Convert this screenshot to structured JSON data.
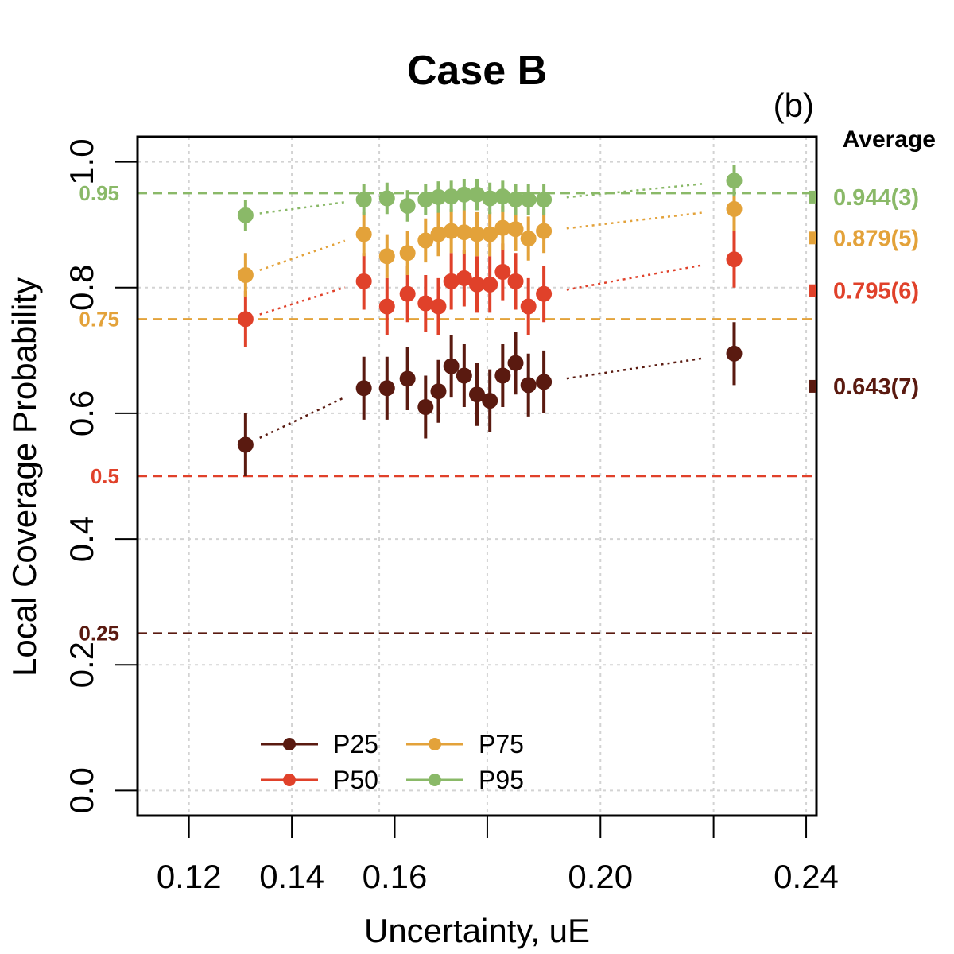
{
  "chart_data": {
    "type": "scatter",
    "title": "Case B",
    "panel_label": "(b)",
    "xlabel": "Uncertainty, uE",
    "ylabel": "Local Coverage Probability",
    "xlim": [
      0.11,
      0.242
    ],
    "ylim": [
      -0.04,
      1.04
    ],
    "x_ticks": [
      0.12,
      0.14,
      0.16,
      0.2,
      0.24
    ],
    "x_tick_labels": [
      "0.12",
      "0.14",
      "0.16",
      "0.20",
      "0.24"
    ],
    "x_minor_ticks": [
      0.178,
      0.222
    ],
    "y_ticks": [
      0.0,
      0.2,
      0.4,
      0.6,
      0.8,
      1.0
    ],
    "y_tick_labels": [
      "0.0",
      "0.2",
      "0.4",
      "0.6",
      "0.8",
      "1.0"
    ],
    "grid_x": [
      0.12,
      0.14,
      0.157,
      0.178,
      0.2,
      0.222,
      0.24
    ],
    "grid": true,
    "x": [
      0.131,
      0.154,
      0.1585,
      0.1625,
      0.166,
      0.1685,
      0.171,
      0.1735,
      0.176,
      0.1785,
      0.181,
      0.1835,
      0.186,
      0.189,
      0.1935,
      0.1995,
      0.226
    ],
    "series": [
      {
        "name": "P25",
        "color": "#5a1a10",
        "values": [
          0.55,
          0.64,
          0.64,
          0.655,
          0.61,
          0.635,
          0.675,
          0.66,
          0.63,
          0.62,
          0.66,
          0.68,
          0.645,
          0.65,
          0.695
        ],
        "x_index": [
          0,
          1,
          2,
          3,
          4,
          5,
          6,
          7,
          8,
          9,
          10,
          11,
          12,
          13,
          16
        ],
        "err": 0.05,
        "avg_label": "0.643(7)",
        "avg_value": 0.643
      },
      {
        "name": "P50",
        "color": "#e0412a",
        "values": [
          0.75,
          0.81,
          0.77,
          0.79,
          0.775,
          0.77,
          0.81,
          0.815,
          0.805,
          0.805,
          0.825,
          0.81,
          0.77,
          0.79,
          0.845
        ],
        "x_index": [
          0,
          1,
          2,
          3,
          4,
          5,
          6,
          7,
          8,
          9,
          10,
          11,
          12,
          13,
          16
        ],
        "err": 0.045,
        "avg_label": "0.795(6)",
        "avg_value": 0.795
      },
      {
        "name": "P75",
        "color": "#e3a23a",
        "values": [
          0.82,
          0.885,
          0.85,
          0.855,
          0.875,
          0.885,
          0.89,
          0.888,
          0.885,
          0.885,
          0.895,
          0.893,
          0.878,
          0.89,
          0.925
        ],
        "x_index": [
          0,
          1,
          2,
          3,
          4,
          5,
          6,
          7,
          8,
          9,
          10,
          11,
          12,
          13,
          16
        ],
        "err": 0.035,
        "avg_label": "0.879(5)",
        "avg_value": 0.879
      },
      {
        "name": "P95",
        "color": "#8ab968",
        "values": [
          0.915,
          0.94,
          0.942,
          0.93,
          0.94,
          0.944,
          0.945,
          0.948,
          0.948,
          0.942,
          0.945,
          0.94,
          0.94,
          0.94,
          0.97
        ],
        "x_index": [
          0,
          1,
          2,
          3,
          4,
          5,
          6,
          7,
          8,
          9,
          10,
          11,
          12,
          13,
          16
        ],
        "err": 0.025,
        "avg_label": "0.944(3)",
        "avg_value": 0.944
      }
    ],
    "reference_lines": [
      {
        "value": 0.25,
        "label": "0.25",
        "color": "#5a1a10"
      },
      {
        "value": 0.5,
        "label": "0.5",
        "color": "#e0412a"
      },
      {
        "value": 0.75,
        "label": "0.75",
        "color": "#e3a23a"
      },
      {
        "value": 0.95,
        "label": "0.95",
        "color": "#8ab968"
      }
    ],
    "average_header": "Average",
    "legend": {
      "placement": "bottom-left",
      "columns": 2,
      "order": [
        "P25",
        "P50",
        "P75",
        "P95"
      ]
    }
  }
}
